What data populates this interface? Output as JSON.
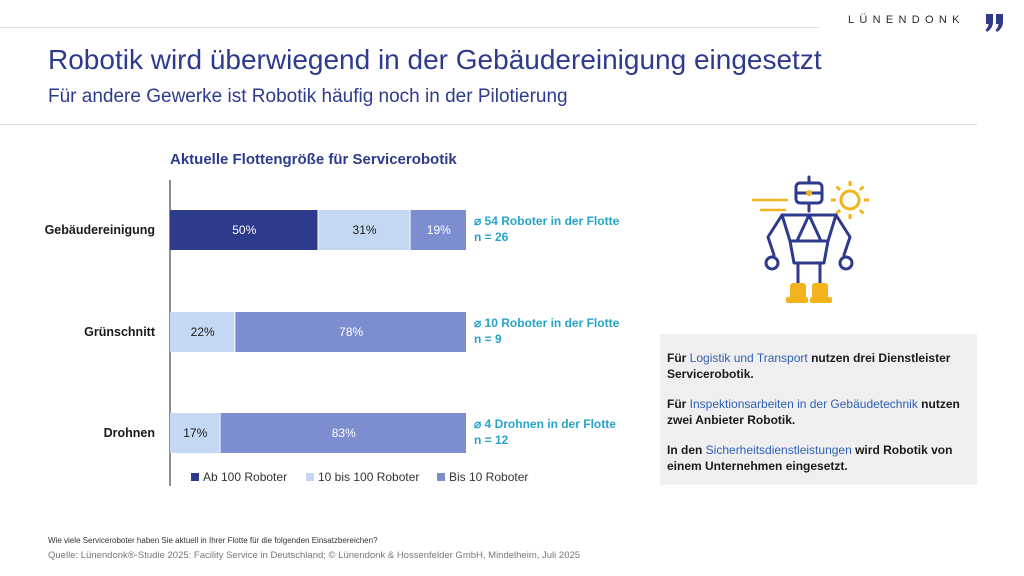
{
  "brand": {
    "name": "LÜNENDONK",
    "colors": {
      "primary": "#2e3a8c",
      "accent": "#26a3c9",
      "gold": "#f2b31c"
    }
  },
  "header": {
    "title": "Robotik wird überwiegend in der Gebäudereinigung eingesetzt",
    "subtitle": "Für andere Gewerke ist Robotik häufig noch in der Pilotierung"
  },
  "chart_data": {
    "type": "bar",
    "orientation": "horizontal",
    "stacked": true,
    "title": "Aktuelle Flottengröße für Servicerobotik",
    "categories": [
      "Gebäudereinigung",
      "Grünschnitt",
      "Drohnen"
    ],
    "series": [
      {
        "name": "Ab 100 Roboter",
        "color": "#2e3a8c",
        "label_color": "#ffffff",
        "values": [
          50,
          0,
          0
        ]
      },
      {
        "name": "10 bis 100 Roboter",
        "color": "#c4d8f3",
        "label_color": "#1a1a1a",
        "values": [
          31,
          22,
          17
        ]
      },
      {
        "name": "Bis 10 Roboter",
        "color": "#7c8ed0",
        "label_color": "#ffffff",
        "values": [
          19,
          78,
          83
        ]
      }
    ],
    "unit": "%",
    "xlim": [
      0,
      100
    ],
    "legend_position": "bottom",
    "grid": false,
    "annotations": [
      {
        "line1": "⌀ 54 Roboter in der Flotte",
        "line2": "n = 26"
      },
      {
        "line1": "⌀ 10 Roboter in der Flotte",
        "line2": "n = 9"
      },
      {
        "line1": "⌀ 4 Drohnen in der Flotte",
        "line2": "n = 12"
      }
    ]
  },
  "info_box": {
    "p1": {
      "pre": "Für ",
      "hl": "Logistik und Transport",
      "post": " nutzen drei Dienstleister Servicerobotik."
    },
    "p2": {
      "pre": "Für ",
      "hl": "Inspektionsarbeiten in der Gebäudetechnik",
      "post": " nutzen zwei Anbieter Robotik."
    },
    "p3": {
      "pre": "In den ",
      "hl": "Sicherheitsdienstleistungen",
      "post": " wird Robotik von einem Unternehmen eingesetzt."
    }
  },
  "footer": {
    "question": "Wie viele Serviceroboter haben Sie aktuell in Ihrer Flotte für die folgenden Einsatzbereichen?",
    "source": "Quelle: Lünendonk®-Studie 2025: Facility Service in Deutschland; © Lünendonk & Hossenfelder GmbH, Mindelheim, Juli 2025"
  },
  "illustration": {
    "icon": "robot-icon",
    "gear_icon": "gear-icon"
  }
}
